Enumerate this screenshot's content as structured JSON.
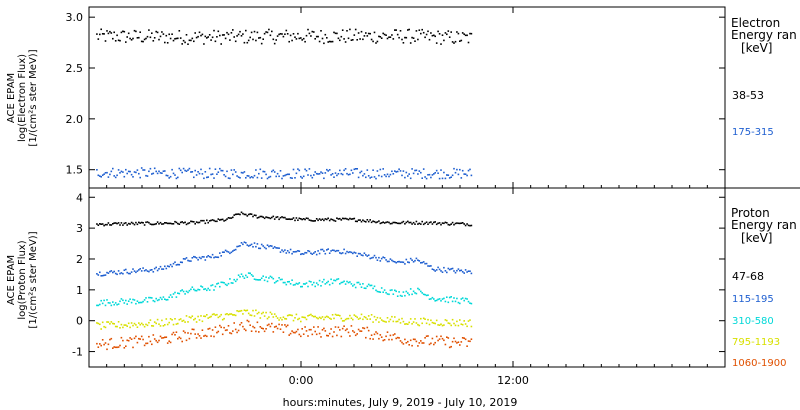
{
  "xaxis": {
    "title": "hours:minutes, July  9, 2019 - July 10, 2019",
    "range_hours": [
      -12,
      24
    ],
    "ticks": [
      {
        "hour": 0,
        "label": "0:00"
      },
      {
        "hour": 12,
        "label": "12:00"
      }
    ]
  },
  "chart_data": [
    {
      "type": "scatter",
      "ylabel": [
        "ACE EPAM",
        "log(Electron Flux)",
        "[1/(cm²s ster MeV)]"
      ],
      "ylim": [
        1.32,
        3.1
      ],
      "yticks": [
        1.5,
        2.0,
        2.5,
        3.0
      ],
      "ytick_labels": [
        "1.5",
        "2.0",
        "2.5",
        "3.0"
      ],
      "legend_title": [
        "Electron",
        "Energy ran",
        "[keV]"
      ],
      "legend_placement": "right",
      "data_x_range_hours": [
        -11.6,
        9.6
      ],
      "series": [
        {
          "name": "38-53",
          "color": "#000000",
          "profile": {
            "x": [
              -11.6,
              -6,
              0,
              6,
              9.6
            ],
            "y": [
              2.82,
              2.81,
              2.82,
              2.82,
              2.8
            ]
          },
          "scatter": 0.07
        },
        {
          "name": "175-315",
          "color": "#1f5fd0",
          "profile": {
            "x": [
              -11.6,
              -6,
              0,
              6,
              9.6
            ],
            "y": [
              1.48,
              1.47,
              1.47,
              1.47,
              1.47
            ]
          },
          "scatter": 0.05
        }
      ]
    },
    {
      "type": "scatter",
      "ylabel": [
        "ACE EPAM",
        "log(Proton Flux)",
        "[1/(cm²s ster MeV)]"
      ],
      "ylim": [
        -1.5,
        4.3
      ],
      "yticks": [
        -1,
        0,
        1,
        2,
        3,
        4
      ],
      "ytick_labels": [
        "-1",
        "0",
        "1",
        "2",
        "3",
        "4"
      ],
      "legend_title": [
        "Proton",
        "Energy ran",
        "[keV]"
      ],
      "legend_placement": "right",
      "data_x_range_hours": [
        -11.6,
        9.6
      ],
      "series": [
        {
          "name": "47-68",
          "color": "#000000",
          "profile": {
            "x": [
              -11.6,
              -6,
              -4.2,
              -3.5,
              -2.5,
              0,
              3,
              5,
              7,
              9.6
            ],
            "y": [
              3.15,
              3.2,
              3.3,
              3.5,
              3.4,
              3.3,
              3.3,
              3.2,
              3.2,
              3.15
            ]
          },
          "scatter": 0.05
        },
        {
          "name": "115-195",
          "color": "#1f5fd0",
          "profile": {
            "x": [
              -11.6,
              -8,
              -6.5,
              -5,
              -4,
              -3.3,
              -2,
              0,
              2,
              4,
              5.5,
              6.5,
              7.5,
              9.6
            ],
            "y": [
              1.55,
              1.7,
              2.0,
              2.1,
              2.3,
              2.55,
              2.4,
              2.2,
              2.3,
              2.1,
              1.9,
              2.0,
              1.7,
              1.6
            ]
          },
          "scatter": 0.08
        },
        {
          "name": "310-580",
          "color": "#00d8d8",
          "profile": {
            "x": [
              -11.6,
              -8,
              -6.5,
              -5,
              -4,
              -3.3,
              -2,
              0,
              2,
              4,
              5.5,
              6.5,
              7.5,
              9.6
            ],
            "y": [
              0.6,
              0.7,
              1.0,
              1.1,
              1.3,
              1.5,
              1.4,
              1.2,
              1.3,
              1.1,
              0.9,
              1.0,
              0.75,
              0.65
            ]
          },
          "scatter": 0.1
        },
        {
          "name": "795-1193",
          "color": "#d8e000",
          "profile": {
            "x": [
              -11.6,
              -8,
              -6,
              -4,
              -3.3,
              -2,
              0,
              3,
              6,
              9.6
            ],
            "y": [
              -0.15,
              -0.05,
              0.1,
              0.2,
              0.3,
              0.2,
              0.1,
              0.15,
              0.0,
              -0.05
            ]
          },
          "scatter": 0.12
        },
        {
          "name": "1060-1900",
          "color": "#e05000",
          "profile": {
            "x": [
              -11.6,
              -8,
              -6,
              -4,
              -3.3,
              -2,
              0,
              3,
              6,
              9.6
            ],
            "y": [
              -0.75,
              -0.6,
              -0.4,
              -0.25,
              -0.1,
              -0.2,
              -0.35,
              -0.3,
              -0.6,
              -0.7
            ]
          },
          "scatter": 0.18
        }
      ]
    }
  ]
}
